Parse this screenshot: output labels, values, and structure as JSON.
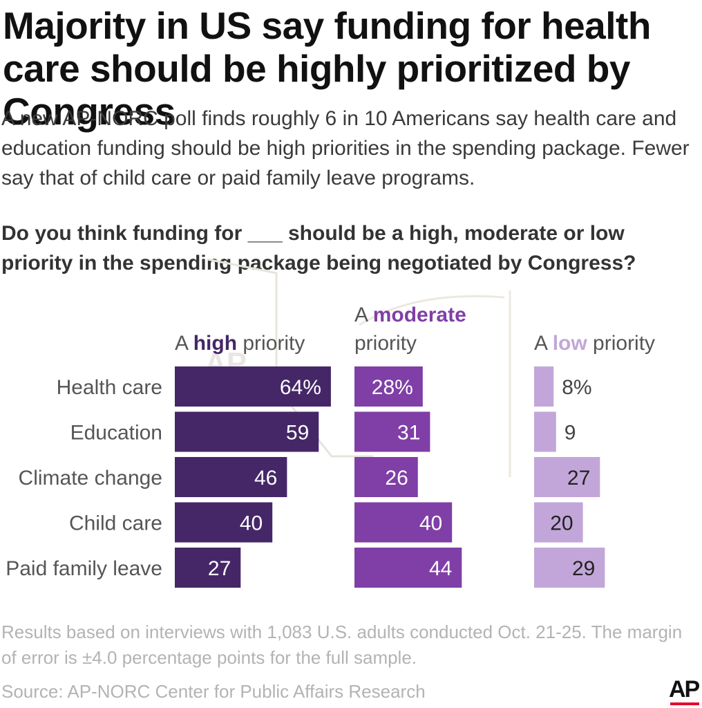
{
  "brand": {
    "logo": "AP"
  },
  "chart_data": {
    "type": "bar",
    "title": "Majority in US say funding for health care should be highly prioritized by Congress",
    "subtitle": "A new AP-NORC poll finds roughly 6 in 10 Americans say health care and education funding should be high priorities in the spending package. Fewer say that of child care or paid family leave programs.",
    "question": "Do you think funding for ___ should be a high, moderate or low priority in the spending package being negotiated by Congress?",
    "categories": [
      "Health care",
      "Education",
      "Climate change",
      "Child care",
      "Paid family leave"
    ],
    "series": [
      {
        "name": "A high priority",
        "header_prefix": "A ",
        "header_keyword": "high",
        "header_suffix": " priority",
        "color": "#452768",
        "label_color": "#ffffff",
        "values": [
          64,
          59,
          46,
          40,
          27
        ],
        "labels": [
          "64%",
          "59",
          "46",
          "40",
          "27"
        ]
      },
      {
        "name": "A moderate priority",
        "header_prefix": "A ",
        "header_keyword": "moderate",
        "header_suffix": "priority",
        "color": "#7f3fa6",
        "label_color": "#ffffff",
        "values": [
          28,
          31,
          26,
          40,
          44
        ],
        "labels": [
          "28%",
          "31",
          "26",
          "40",
          "44"
        ]
      },
      {
        "name": "A low priority",
        "header_prefix": "A ",
        "header_keyword": "low",
        "header_suffix": " priority",
        "color": "#c2a6d9",
        "label_color": "#222222",
        "values": [
          8,
          9,
          27,
          20,
          29
        ],
        "labels": [
          "8%",
          "9",
          "27",
          "20",
          "29"
        ]
      }
    ],
    "footnote": "Results based on interviews with 1,083 U.S. adults conducted Oct. 21-25. The margin of error is ±4.0 percentage points for the full sample.",
    "source": "Source: AP-NORC Center for Public Affairs Research",
    "xlim": [
      0,
      100
    ]
  }
}
